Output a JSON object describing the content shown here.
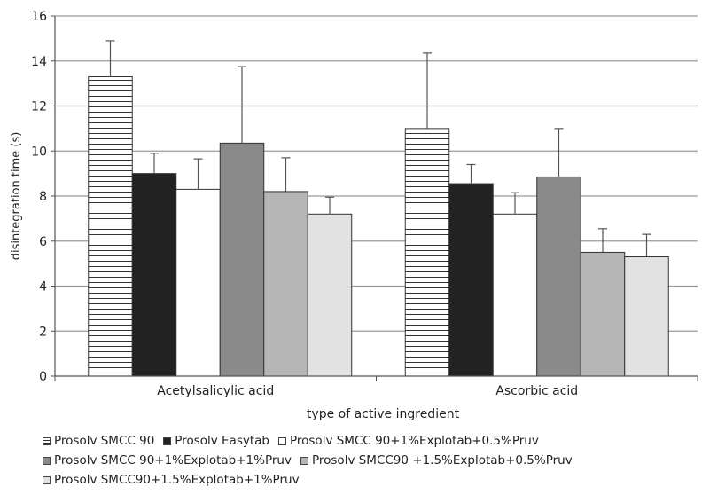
{
  "chart_data": {
    "type": "bar",
    "xlabel": "type of active ingredient",
    "ylabel": "disintegration time (s)",
    "ylim": [
      0,
      16
    ],
    "yticks": [
      0,
      2,
      4,
      6,
      8,
      10,
      12,
      14,
      16
    ],
    "grid": true,
    "legend_position": "bottom",
    "categories": [
      "Acetylsalicylic acid",
      "Ascorbic acid"
    ],
    "series": [
      {
        "name": "Prosolv SMCC 90",
        "values": [
          13.3,
          11.0
        ],
        "errors": [
          1.6,
          3.35
        ],
        "fill": "#ffffff",
        "pattern": "hlines"
      },
      {
        "name": "Prosolv Easytab",
        "values": [
          9.0,
          8.55
        ],
        "errors": [
          0.9,
          0.85
        ],
        "fill": "#222222"
      },
      {
        "name": "Prosolv SMCC 90+1%Explotab+0.5%Pruv",
        "values": [
          8.3,
          7.2
        ],
        "errors": [
          1.35,
          0.95
        ],
        "fill": "#ffffff"
      },
      {
        "name": "Prosolv SMCC 90+1%Explotab+1%Pruv",
        "values": [
          10.35,
          8.85
        ],
        "errors": [
          3.4,
          2.15
        ],
        "fill": "#8a8a8a"
      },
      {
        "name": "Prosolv SMCC90 +1.5%Explotab+0.5%Pruv",
        "values": [
          8.2,
          5.5
        ],
        "errors": [
          1.5,
          1.05
        ],
        "fill": "#b5b5b5"
      },
      {
        "name": "Prosolv SMCC90+1.5%Explotab+1%Pruv",
        "values": [
          7.2,
          5.3
        ],
        "errors": [
          0.75,
          1.0
        ],
        "fill": "#e2e2e2"
      }
    ],
    "legend_rows": [
      [
        0,
        1,
        2
      ],
      [
        3,
        4
      ],
      [
        5
      ]
    ]
  }
}
